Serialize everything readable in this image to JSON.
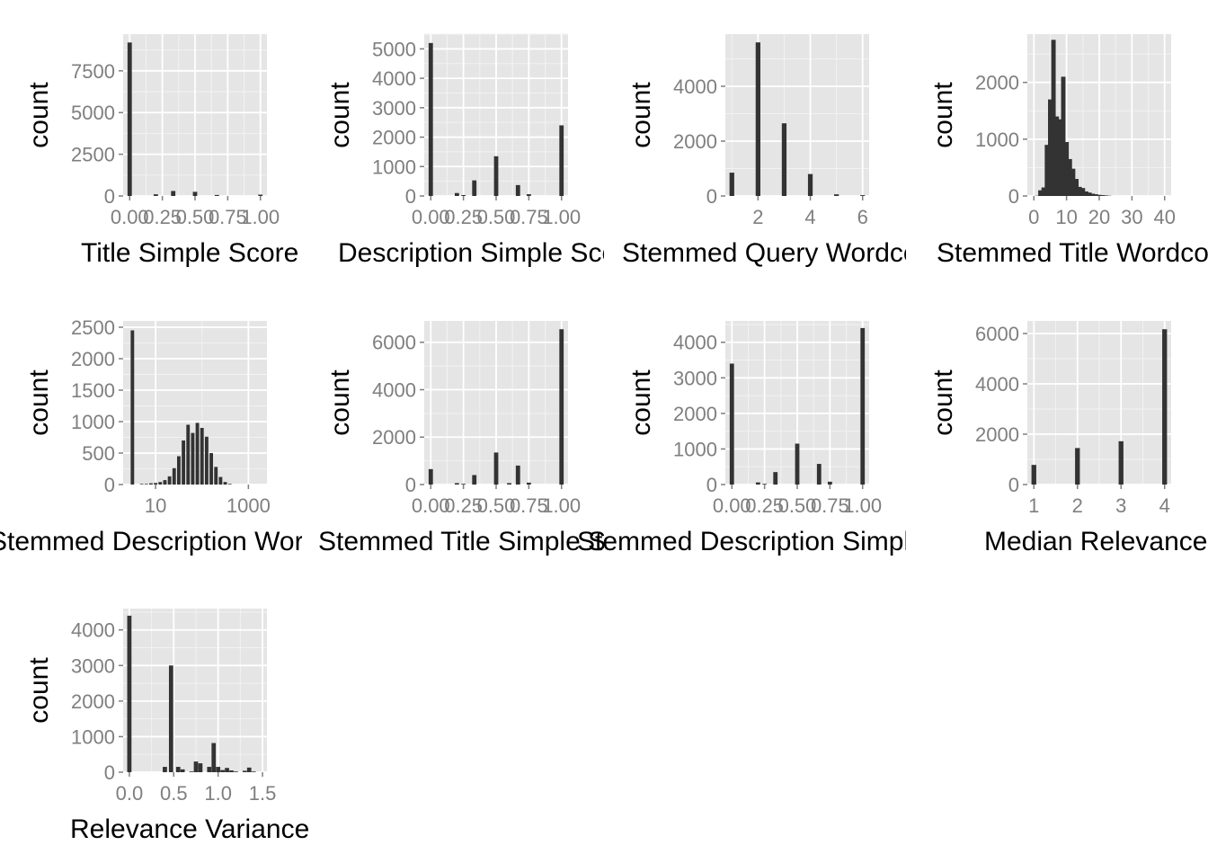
{
  "chart_data": [
    {
      "type": "bar",
      "xlabel": "Title Simple Score",
      "ylabel": "count",
      "xlim": [
        -0.05,
        1.05
      ],
      "ylim": [
        0,
        9700
      ],
      "xticks": [
        "0.00",
        "0.25",
        "0.50",
        "0.75",
        "1.00"
      ],
      "yticks": [
        "0",
        "2500",
        "5000",
        "7500"
      ],
      "bar_width": 0.033,
      "x": [
        0,
        0.2,
        0.333,
        0.5,
        0.667,
        1.0
      ],
      "values": [
        9200,
        100,
        300,
        250,
        60,
        80
      ]
    },
    {
      "type": "bar",
      "xlabel": "Description Simple Score",
      "ylabel": "count",
      "xlim": [
        -0.05,
        1.05
      ],
      "ylim": [
        0,
        5500
      ],
      "xticks": [
        "0.00",
        "0.25",
        "0.50",
        "0.75",
        "1.00"
      ],
      "yticks": [
        "0",
        "1000",
        "2000",
        "3000",
        "4000",
        "5000"
      ],
      "bar_width": 0.033,
      "x": [
        0,
        0.2,
        0.25,
        0.333,
        0.5,
        0.667,
        0.75,
        1.0
      ],
      "values": [
        5200,
        100,
        30,
        530,
        1350,
        370,
        60,
        2400
      ]
    },
    {
      "type": "bar",
      "xlabel": "Stemmed Query Wordcount",
      "ylabel": "count",
      "xlim": [
        0.75,
        6.25
      ],
      "ylim": [
        0,
        5900
      ],
      "xticks": [
        "2",
        "4",
        "6"
      ],
      "yticks": [
        "0",
        "2000",
        "4000"
      ],
      "bar_width": 0.18,
      "x": [
        1,
        2,
        3,
        4,
        5,
        6
      ],
      "values": [
        850,
        5600,
        2650,
        800,
        60,
        30
      ]
    },
    {
      "type": "bar",
      "xlabel": "Stemmed Title Wordcount",
      "ylabel": "count",
      "xlim": [
        -2,
        42
      ],
      "ylim": [
        0,
        2850
      ],
      "xticks": [
        "0",
        "10",
        "20",
        "30",
        "40"
      ],
      "yticks": [
        "0",
        "1000",
        "2000"
      ],
      "bar_width": 1.35,
      "x": [
        1,
        2,
        3,
        4,
        5,
        6,
        7,
        8,
        9,
        10,
        11,
        12,
        13,
        14,
        15,
        16,
        17,
        18,
        19,
        20,
        21,
        22,
        23
      ],
      "values": [
        5,
        100,
        150,
        900,
        1700,
        2750,
        1400,
        1350,
        2100,
        950,
        650,
        480,
        300,
        160,
        140,
        80,
        60,
        40,
        30,
        20,
        15,
        10,
        5
      ]
    },
    {
      "type": "bar",
      "xlabel": "Stemmed Description Wordcount",
      "ylabel": "count",
      "log_x": true,
      "xlim": [
        0.3,
        3.4
      ],
      "ylim": [
        0,
        2600
      ],
      "xticks": [
        "10",
        "1000"
      ],
      "yticks": [
        "0",
        "500",
        "1000",
        "1500",
        "2000",
        "2500"
      ],
      "bar_width": 0.075,
      "x": [
        0.5,
        0.7,
        0.8,
        0.9,
        1.0,
        1.1,
        1.2,
        1.3,
        1.4,
        1.5,
        1.6,
        1.7,
        1.8,
        1.9,
        2.0,
        2.1,
        2.2,
        2.3,
        2.4,
        2.5,
        2.6
      ],
      "values": [
        2450,
        10,
        10,
        20,
        25,
        40,
        70,
        130,
        260,
        450,
        700,
        950,
        820,
        980,
        900,
        760,
        500,
        280,
        120,
        40,
        10
      ]
    },
    {
      "type": "bar",
      "xlabel": "Stemmed Title Simple Score",
      "ylabel": "count",
      "xlim": [
        -0.05,
        1.05
      ],
      "ylim": [
        0,
        6900
      ],
      "xticks": [
        "0.00",
        "0.25",
        "0.50",
        "0.75",
        "1.00"
      ],
      "yticks": [
        "0",
        "2000",
        "4000",
        "6000"
      ],
      "bar_width": 0.033,
      "x": [
        0,
        0.2,
        0.25,
        0.333,
        0.5,
        0.6,
        0.667,
        0.75,
        1.0
      ],
      "values": [
        650,
        60,
        30,
        400,
        1350,
        60,
        800,
        80,
        6550
      ]
    },
    {
      "type": "bar",
      "xlabel": "Stemmed Description Simple Score",
      "ylabel": "count",
      "xlim": [
        -0.05,
        1.05
      ],
      "ylim": [
        0,
        4600
      ],
      "xticks": [
        "0.00",
        "0.25",
        "0.50",
        "0.75",
        "1.00"
      ],
      "yticks": [
        "0",
        "1000",
        "2000",
        "3000",
        "4000"
      ],
      "bar_width": 0.033,
      "x": [
        0,
        0.2,
        0.25,
        0.333,
        0.5,
        0.667,
        0.75,
        1.0
      ],
      "values": [
        3400,
        60,
        20,
        350,
        1150,
        580,
        80,
        4400
      ]
    },
    {
      "type": "bar",
      "xlabel": "Median Relevance",
      "ylabel": "count",
      "xlim": [
        0.85,
        4.15
      ],
      "ylim": [
        0,
        6500
      ],
      "xticks": [
        "1",
        "2",
        "3",
        "4"
      ],
      "yticks": [
        "0",
        "2000",
        "4000",
        "6000"
      ],
      "bar_width": 0.11,
      "x": [
        1,
        2,
        3,
        4
      ],
      "values": [
        780,
        1450,
        1720,
        6170
      ]
    },
    {
      "type": "bar",
      "xlabel": "Relevance Variance",
      "ylabel": "count",
      "xlim": [
        -0.07,
        1.55
      ],
      "ylim": [
        0,
        4600
      ],
      "xticks": [
        "0.0",
        "0.5",
        "1.0",
        "1.5"
      ],
      "yticks": [
        "0",
        "1000",
        "2000",
        "3000",
        "4000"
      ],
      "bar_width": 0.048,
      "x": [
        0,
        0.4,
        0.47,
        0.55,
        0.6,
        0.7,
        0.75,
        0.8,
        0.9,
        0.95,
        1.0,
        1.05,
        1.1,
        1.15,
        1.2,
        1.3,
        1.35,
        1.4
      ],
      "values": [
        4400,
        150,
        3000,
        150,
        80,
        20,
        300,
        250,
        150,
        820,
        150,
        60,
        120,
        50,
        20,
        40,
        130,
        20
      ]
    }
  ]
}
